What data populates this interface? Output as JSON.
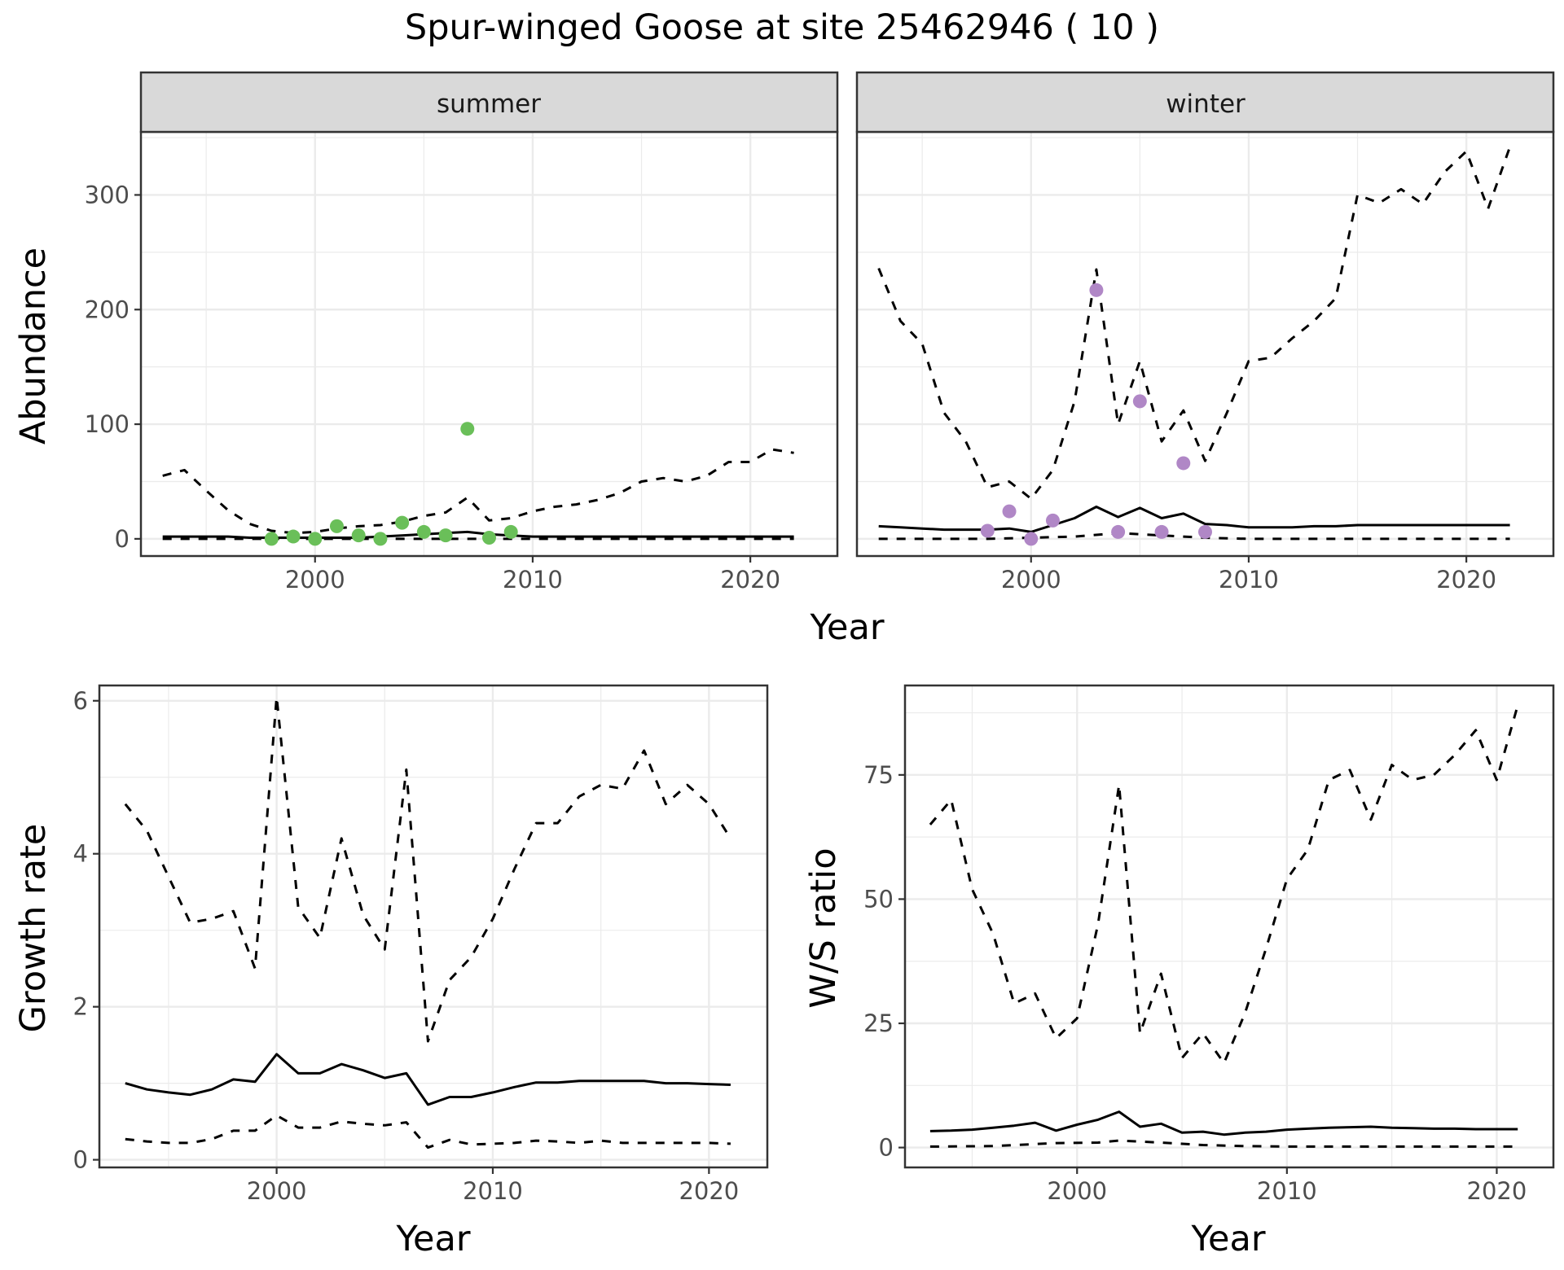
{
  "title": "Spur-winged Goose at site 25462946 ( 10 )",
  "colors": {
    "summer_points": "#6abf59",
    "winter_points": "#b087c6",
    "line": "#000000",
    "strip_fill": "#d9d9d9",
    "grid": "#ebebeb"
  },
  "chart_data": [
    {
      "type": "line",
      "facet": "summer",
      "xlabel": "Year",
      "ylabel": "Abundance",
      "xlim": [
        1992,
        2024
      ],
      "ylim": [
        -15,
        355
      ],
      "xticks": [
        2000,
        2010,
        2020
      ],
      "yticks": [
        0,
        100,
        200,
        300
      ],
      "grid": true,
      "series": [
        {
          "style": "solid",
          "x": [
            1993,
            1994,
            1995,
            1996,
            1997,
            1998,
            1999,
            2000,
            2001,
            2002,
            2003,
            2004,
            2005,
            2006,
            2007,
            2008,
            2009,
            2010,
            2011,
            2012,
            2013,
            2014,
            2015,
            2016,
            2017,
            2018,
            2019,
            2020,
            2021,
            2022
          ],
          "values": [
            2,
            2,
            2,
            2,
            1,
            1,
            1,
            1,
            1,
            1,
            2,
            3,
            4,
            5,
            6,
            4,
            3,
            2,
            2,
            2,
            2,
            2,
            2,
            2,
            2,
            2,
            2,
            2,
            2,
            2
          ]
        },
        {
          "style": "dashed",
          "x": [
            1993,
            1994,
            1995,
            1996,
            1997,
            1998,
            1999,
            2000,
            2001,
            2002,
            2003,
            2004,
            2005,
            2006,
            2007,
            2008,
            2009,
            2010,
            2011,
            2012,
            2013,
            2014,
            2015,
            2016,
            2017,
            2018,
            2019,
            2020,
            2021,
            2022
          ],
          "values": [
            55,
            60,
            42,
            25,
            13,
            7,
            5,
            6,
            9,
            11,
            12,
            15,
            20,
            23,
            36,
            16,
            18,
            24,
            28,
            30,
            34,
            40,
            50,
            53,
            50,
            55,
            67,
            67,
            78,
            75
          ]
        },
        {
          "style": "dashed",
          "x": [
            1993,
            1995,
            2000,
            2005,
            2010,
            2015,
            2020,
            2022
          ],
          "values": [
            0,
            0,
            0,
            0,
            0,
            0,
            0,
            0
          ]
        },
        {
          "style": "points",
          "x": [
            1998,
            1999,
            2000,
            2001,
            2002,
            2003,
            2004,
            2005,
            2006,
            2007,
            2008,
            2009
          ],
          "values": [
            0,
            2,
            0,
            11,
            3,
            0,
            14,
            6,
            3,
            96,
            1,
            6
          ]
        }
      ]
    },
    {
      "type": "line",
      "facet": "winter",
      "xlabel": "Year",
      "ylabel": "Abundance",
      "xlim": [
        1992,
        2024
      ],
      "ylim": [
        -15,
        355
      ],
      "xticks": [
        2000,
        2010,
        2020
      ],
      "yticks": [
        0,
        100,
        200,
        300
      ],
      "grid": true,
      "series": [
        {
          "style": "solid",
          "x": [
            1993,
            1994,
            1995,
            1996,
            1997,
            1998,
            1999,
            2000,
            2001,
            2002,
            2003,
            2004,
            2005,
            2006,
            2007,
            2008,
            2009,
            2010,
            2011,
            2012,
            2013,
            2014,
            2015,
            2016,
            2017,
            2018,
            2019,
            2020,
            2021,
            2022
          ],
          "values": [
            11,
            10,
            9,
            8,
            8,
            8,
            9,
            6,
            12,
            18,
            28,
            19,
            27,
            18,
            22,
            13,
            12,
            10,
            10,
            10,
            11,
            11,
            12,
            12,
            12,
            12,
            12,
            12,
            12,
            12
          ]
        },
        {
          "style": "dashed",
          "x": [
            1993,
            1994,
            1995,
            1996,
            1997,
            1998,
            1999,
            2000,
            2001,
            2002,
            2003,
            2004,
            2005,
            2006,
            2007,
            2008,
            2009,
            2010,
            2011,
            2012,
            2013,
            2014,
            2015,
            2016,
            2017,
            2018,
            2019,
            2020,
            2021,
            2022
          ],
          "values": [
            236,
            190,
            170,
            110,
            85,
            45,
            50,
            35,
            60,
            120,
            235,
            100,
            155,
            85,
            112,
            68,
            110,
            155,
            158,
            175,
            190,
            210,
            300,
            293,
            305,
            292,
            320,
            338,
            288,
            342
          ]
        },
        {
          "style": "dashed",
          "x": [
            1993,
            1995,
            1998,
            2000,
            2002,
            2004,
            2006,
            2008,
            2010,
            2015,
            2020,
            2022
          ],
          "values": [
            0,
            0,
            0,
            1,
            2,
            5,
            3,
            1,
            0,
            0,
            0,
            0
          ]
        },
        {
          "style": "points",
          "x": [
            1998,
            1999,
            2000,
            2001,
            2003,
            2004,
            2005,
            2006,
            2007,
            2008
          ],
          "values": [
            7,
            24,
            0,
            16,
            217,
            6,
            120,
            6,
            66,
            6
          ]
        }
      ]
    },
    {
      "type": "line",
      "xlabel": "Year",
      "ylabel": "Growth rate",
      "xlim": [
        1991.8,
        2022.7
      ],
      "ylim": [
        -0.1,
        6.2
      ],
      "xticks": [
        2000,
        2010,
        2020
      ],
      "yticks": [
        0,
        2,
        4,
        6
      ],
      "grid": true,
      "series": [
        {
          "style": "solid",
          "x": [
            1993,
            1994,
            1995,
            1996,
            1997,
            1998,
            1999,
            2000,
            2001,
            2002,
            2003,
            2004,
            2005,
            2006,
            2007,
            2008,
            2009,
            2010,
            2011,
            2012,
            2013,
            2014,
            2015,
            2016,
            2017,
            2018,
            2019,
            2020,
            2021
          ],
          "values": [
            1.0,
            0.92,
            0.88,
            0.85,
            0.92,
            1.05,
            1.02,
            1.38,
            1.13,
            1.13,
            1.25,
            1.17,
            1.07,
            1.13,
            0.72,
            0.82,
            0.82,
            0.88,
            0.95,
            1.01,
            1.01,
            1.03,
            1.03,
            1.03,
            1.03,
            1.0,
            1.0,
            0.99,
            0.98
          ]
        },
        {
          "style": "dashed",
          "x": [
            1993,
            1994,
            1995,
            1996,
            1997,
            1998,
            1999,
            2000,
            2001,
            2002,
            2003,
            2004,
            2005,
            2006,
            2007,
            2008,
            2009,
            2010,
            2011,
            2012,
            2013,
            2014,
            2015,
            2016,
            2017,
            2018,
            2019,
            2020,
            2021
          ],
          "values": [
            4.65,
            4.3,
            3.7,
            3.1,
            3.15,
            3.25,
            2.5,
            6.05,
            3.3,
            2.9,
            4.2,
            3.2,
            2.75,
            5.1,
            1.55,
            2.35,
            2.65,
            3.15,
            3.8,
            4.4,
            4.4,
            4.75,
            4.9,
            4.85,
            5.35,
            4.65,
            4.9,
            4.65,
            4.2
          ]
        },
        {
          "style": "dashed",
          "x": [
            1993,
            1994,
            1995,
            1996,
            1997,
            1998,
            1999,
            2000,
            2001,
            2002,
            2003,
            2004,
            2005,
            2006,
            2007,
            2008,
            2009,
            2010,
            2011,
            2012,
            2013,
            2014,
            2015,
            2016,
            2017,
            2018,
            2019,
            2020,
            2021
          ],
          "values": [
            0.27,
            0.24,
            0.22,
            0.22,
            0.27,
            0.38,
            0.38,
            0.58,
            0.42,
            0.42,
            0.5,
            0.47,
            0.45,
            0.49,
            0.16,
            0.26,
            0.2,
            0.21,
            0.22,
            0.25,
            0.24,
            0.22,
            0.25,
            0.22,
            0.22,
            0.22,
            0.22,
            0.22,
            0.21
          ]
        }
      ]
    },
    {
      "type": "line",
      "xlabel": "Year",
      "ylabel": "W/S ratio",
      "xlim": [
        1991.8,
        2022.7
      ],
      "ylim": [
        -4,
        93
      ],
      "xticks": [
        2000,
        2010,
        2020
      ],
      "yticks": [
        0,
        25,
        50,
        75
      ],
      "grid": true,
      "series": [
        {
          "style": "solid",
          "x": [
            1993,
            1994,
            1995,
            1996,
            1997,
            1998,
            1999,
            2000,
            2001,
            2002,
            2003,
            2004,
            2005,
            2006,
            2007,
            2008,
            2009,
            2010,
            2011,
            2012,
            2013,
            2014,
            2015,
            2016,
            2017,
            2018,
            2019,
            2020,
            2021
          ],
          "values": [
            3.3,
            3.4,
            3.6,
            4.0,
            4.4,
            5.0,
            3.4,
            4.6,
            5.6,
            7.2,
            4.2,
            4.8,
            3.0,
            3.2,
            2.6,
            3.0,
            3.2,
            3.6,
            3.8,
            4.0,
            4.1,
            4.2,
            4.0,
            3.9,
            3.8,
            3.8,
            3.7,
            3.7,
            3.7
          ]
        },
        {
          "style": "dashed",
          "x": [
            1993,
            1994,
            1995,
            1996,
            1997,
            1998,
            1999,
            2000,
            2001,
            2002,
            2003,
            2004,
            2005,
            2006,
            2007,
            2008,
            2009,
            2010,
            2011,
            2012,
            2013,
            2014,
            2015,
            2016,
            2017,
            2018,
            2019,
            2020,
            2021
          ],
          "values": [
            65,
            70,
            52,
            43,
            29,
            31,
            22,
            26,
            45,
            73,
            23,
            35,
            18,
            23,
            17,
            27,
            40,
            54,
            60,
            74,
            76,
            66,
            77,
            74,
            75,
            79,
            84,
            74,
            89
          ]
        },
        {
          "style": "dashed",
          "x": [
            1993,
            1996,
            1999,
            2001,
            2002,
            2004,
            2006,
            2008,
            2010,
            2015,
            2021
          ],
          "values": [
            0.2,
            0.3,
            0.9,
            1.0,
            1.4,
            1.0,
            0.5,
            0.3,
            0.2,
            0.2,
            0.2
          ]
        }
      ]
    }
  ],
  "facet_strips": [
    "summer",
    "winter"
  ],
  "shared_xlabel_top": "Year"
}
